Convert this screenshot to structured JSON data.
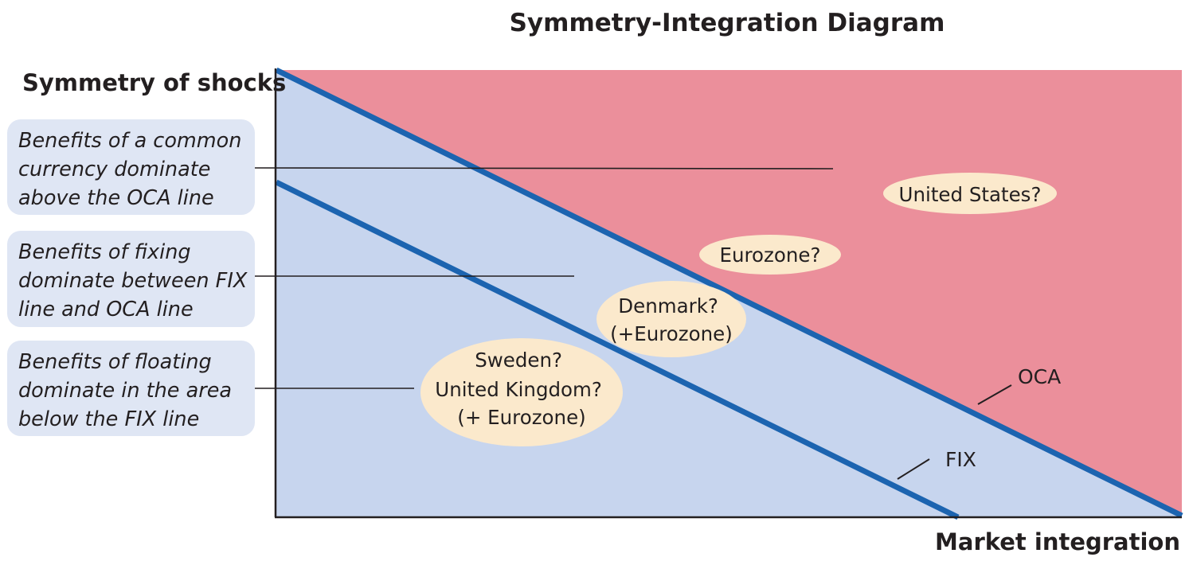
{
  "title": "Symmetry-Integration Diagram",
  "y_axis_label": "Symmetry of shocks",
  "x_axis_label": "Market integration",
  "colors": {
    "region_above_oca": "#eb8f9b",
    "region_below_oca": "#c7d5ee",
    "boundary_lines": "#1c64b0",
    "explanation_box": "#dfe6f4",
    "country_bubble": "#fbe9cc",
    "axis": "#231f20"
  },
  "lines": {
    "oca": "OCA",
    "fix": "FIX"
  },
  "explanations": [
    {
      "lines": [
        "Benefits of a common",
        "currency dominate",
        "above the OCA line"
      ]
    },
    {
      "lines": [
        "Benefits of fixing",
        "dominate between FIX",
        "line and OCA line"
      ]
    },
    {
      "lines": [
        "Benefits of floating",
        "dominate in the area",
        "below the FIX line"
      ]
    }
  ],
  "countries": [
    {
      "lines": [
        "United States?"
      ]
    },
    {
      "lines": [
        "Eurozone?"
      ]
    },
    {
      "lines": [
        "Denmark?",
        "(+Eurozone)"
      ]
    },
    {
      "lines": [
        "Sweden?",
        "United Kingdom?",
        "(+ Eurozone)"
      ]
    }
  ]
}
